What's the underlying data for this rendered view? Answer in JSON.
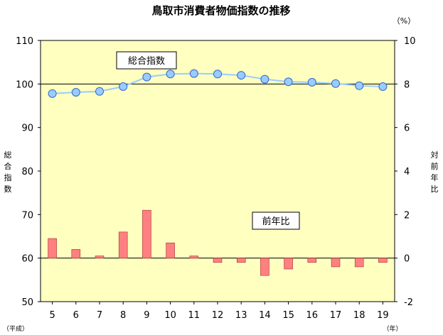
{
  "chart_data": {
    "type": "bar+line",
    "title": "鳥取市消費者物価指数の推移",
    "x": [
      "5",
      "6",
      "7",
      "8",
      "9",
      "10",
      "11",
      "12",
      "13",
      "14",
      "15",
      "16",
      "17",
      "18",
      "19"
    ],
    "x_axis_note": "（平成）",
    "x_unit": "（年）",
    "y_left": {
      "label": "総合指数",
      "ylim": [
        50,
        110
      ],
      "ticks": [
        50,
        60,
        70,
        80,
        90,
        100,
        110
      ]
    },
    "y_right": {
      "label": "対前年比",
      "unit": "（%）",
      "ylim": [
        -2,
        10
      ],
      "ticks": [
        -2,
        0,
        2,
        4,
        6,
        8,
        10
      ]
    },
    "reference_line": 100,
    "series": [
      {
        "name": "総合指数",
        "type": "line",
        "axis": "left",
        "color": "#99ccff",
        "values": [
          97.8,
          98.1,
          98.3,
          99.4,
          101.6,
          102.3,
          102.4,
          102.3,
          102.0,
          101.1,
          100.5,
          100.4,
          100.1,
          99.6,
          99.4
        ]
      },
      {
        "name": "前年比",
        "type": "bar",
        "axis": "right",
        "color": "#ff8080",
        "values": [
          0.9,
          0.4,
          0.1,
          1.2,
          2.2,
          0.7,
          0.1,
          -0.2,
          -0.2,
          -0.8,
          -0.5,
          -0.2,
          -0.4,
          -0.4,
          -0.2
        ]
      }
    ],
    "grid": false,
    "background": "#ffffc0"
  }
}
